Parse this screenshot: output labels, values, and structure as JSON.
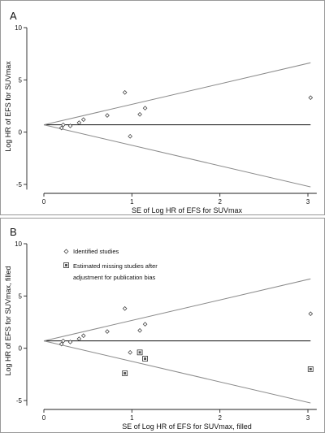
{
  "chart_data": [
    {
      "type": "scatter",
      "panel_label": "A",
      "xlabel": "SE of Log HR of EFS for SUVmax",
      "ylabel": "Log HR of EFS for SUVmax",
      "xlim": [
        0,
        3.1
      ],
      "ylim": [
        -5.5,
        10
      ],
      "xticks": [
        "0",
        "1",
        "2",
        "3"
      ],
      "yticks": [
        "-5",
        "0",
        "5",
        "10"
      ],
      "pooled_estimate": 0.7,
      "pseudo_ci_slope": 1.96,
      "series": [
        {
          "marker": "diamond",
          "points": [
            {
              "x": 0.2,
              "y": 0.4
            },
            {
              "x": 0.22,
              "y": 0.7
            },
            {
              "x": 0.3,
              "y": 0.6
            },
            {
              "x": 0.4,
              "y": 0.9
            },
            {
              "x": 0.45,
              "y": 1.2
            },
            {
              "x": 0.72,
              "y": 1.6
            },
            {
              "x": 0.92,
              "y": 3.8
            },
            {
              "x": 0.98,
              "y": -0.4
            },
            {
              "x": 1.09,
              "y": 1.7
            },
            {
              "x": 1.15,
              "y": 2.3
            },
            {
              "x": 3.03,
              "y": 3.3
            }
          ]
        }
      ]
    },
    {
      "type": "scatter",
      "panel_label": "B",
      "xlabel": "SE of Log HR of EFS for SUVmax, filled",
      "ylabel": "Log HR of EFS for SUVmax, filled",
      "xlim": [
        0,
        3.1
      ],
      "ylim": [
        -5.5,
        10
      ],
      "xticks": [
        "0",
        "1",
        "2",
        "3"
      ],
      "yticks": [
        "-5",
        "0",
        "5",
        "10"
      ],
      "pooled_estimate": 0.7,
      "pseudo_ci_slope": 1.96,
      "legend": {
        "identified": "Identified studies",
        "missing_line1": "Estimated missing studies after",
        "missing_line2": "adjustment for publication bias"
      },
      "series": [
        {
          "name": "Identified studies",
          "marker": "diamond",
          "points": [
            {
              "x": 0.2,
              "y": 0.4
            },
            {
              "x": 0.22,
              "y": 0.7
            },
            {
              "x": 0.3,
              "y": 0.6
            },
            {
              "x": 0.4,
              "y": 0.9
            },
            {
              "x": 0.45,
              "y": 1.2
            },
            {
              "x": 0.72,
              "y": 1.6
            },
            {
              "x": 0.92,
              "y": 3.8
            },
            {
              "x": 0.98,
              "y": -0.4
            },
            {
              "x": 1.09,
              "y": 1.7
            },
            {
              "x": 1.15,
              "y": 2.3
            },
            {
              "x": 3.03,
              "y": 3.3
            }
          ]
        },
        {
          "name": "Estimated missing studies after adjustment for publication bias",
          "marker": "square",
          "points": [
            {
              "x": 0.92,
              "y": -2.4
            },
            {
              "x": 1.09,
              "y": -0.4
            },
            {
              "x": 1.15,
              "y": -1.0
            },
            {
              "x": 3.03,
              "y": -2.0
            }
          ]
        }
      ]
    }
  ]
}
